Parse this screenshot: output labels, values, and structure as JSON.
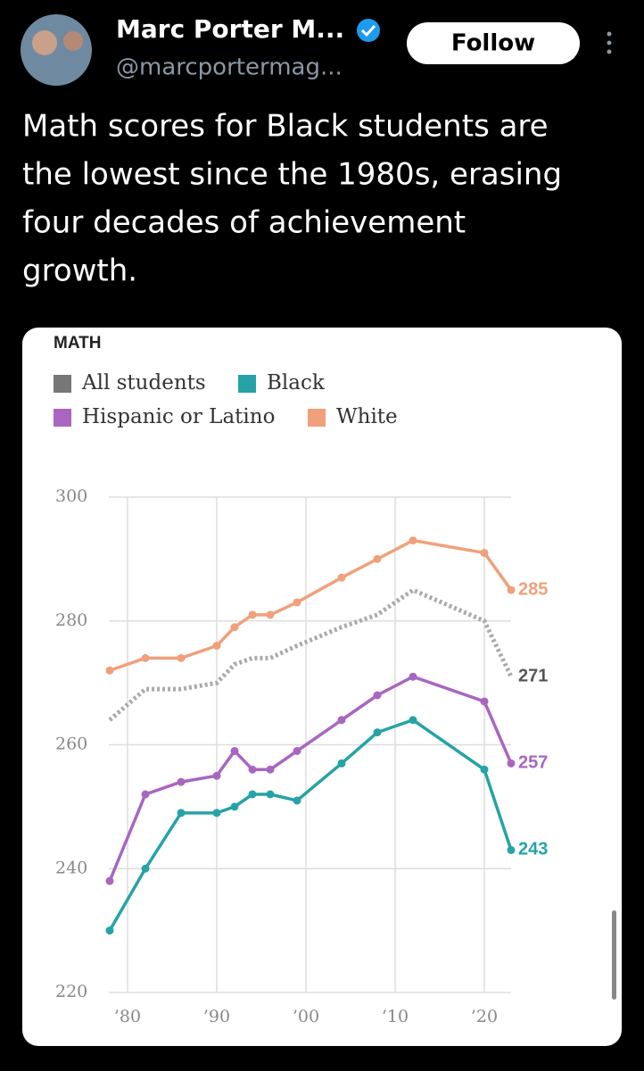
{
  "tweet": {
    "name": "Marc Porter M...",
    "handle": "@marcportermag...",
    "follow": "Follow",
    "text_lines": [
      "Math scores for Black students are",
      "the lowest since the 1980s, erasing",
      "four decades of achievement",
      "growth."
    ]
  },
  "chart_data": {
    "type": "line",
    "title": "MATH",
    "x": [
      1978,
      1982,
      1986,
      1990,
      1992,
      1994,
      1996,
      1999,
      2004,
      2008,
      2012,
      2020,
      2023
    ],
    "series": [
      {
        "name": "All students",
        "color": "#aaaaaa",
        "legend_color": "#777777",
        "label_color": "#555555",
        "line_style": "dotted",
        "values": [
          264,
          269,
          269,
          270,
          273,
          274,
          274,
          276,
          279,
          281,
          285,
          280,
          271
        ]
      },
      {
        "name": "Black",
        "color": "#26a3a6",
        "line_style": "solid",
        "values": [
          230,
          240,
          249,
          249,
          250,
          252,
          252,
          251,
          257,
          262,
          264,
          256,
          243
        ]
      },
      {
        "name": "Hispanic or Latino",
        "color": "#a866c0",
        "line_style": "solid",
        "values": [
          238,
          252,
          254,
          255,
          259,
          256,
          256,
          259,
          264,
          268,
          271,
          267,
          257
        ]
      },
      {
        "name": "White",
        "color": "#f0a07a",
        "line_style": "solid",
        "values": [
          272,
          274,
          274,
          276,
          279,
          281,
          281,
          283,
          287,
          290,
          293,
          291,
          285
        ]
      }
    ],
    "xlim": [
      1978,
      2023
    ],
    "xticks": [
      {
        "value": 1980,
        "label": "’80"
      },
      {
        "value": 1990,
        "label": "’90"
      },
      {
        "value": 2000,
        "label": "’00"
      },
      {
        "value": 2010,
        "label": "’10"
      },
      {
        "value": 2020,
        "label": "’20"
      }
    ],
    "ylim": [
      220,
      300
    ],
    "yticks": [
      220,
      240,
      260,
      280,
      300
    ],
    "grid": true
  }
}
